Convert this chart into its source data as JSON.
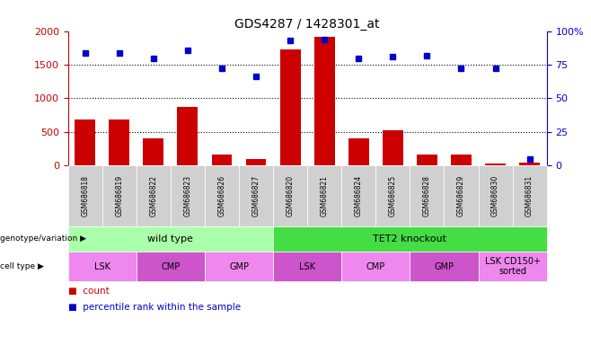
{
  "title": "GDS4287 / 1428301_at",
  "samples": [
    "GSM686818",
    "GSM686819",
    "GSM686822",
    "GSM686823",
    "GSM686826",
    "GSM686827",
    "GSM686820",
    "GSM686821",
    "GSM686824",
    "GSM686825",
    "GSM686828",
    "GSM686829",
    "GSM686830",
    "GSM686831"
  ],
  "counts": [
    680,
    690,
    400,
    870,
    165,
    100,
    1730,
    1920,
    400,
    520,
    170,
    160,
    30,
    50
  ],
  "percentile_ranks": [
    84,
    84,
    80,
    86,
    72,
    66,
    93,
    94,
    80,
    81,
    82,
    72,
    72,
    5
  ],
  "bar_color": "#cc0000",
  "dot_color": "#0000cc",
  "ylim_left": [
    0,
    2000
  ],
  "ylim_right": [
    0,
    100
  ],
  "yticks_left": [
    0,
    500,
    1000,
    1500,
    2000
  ],
  "ytick_labels_left": [
    "0",
    "500",
    "1000",
    "1500",
    "2000"
  ],
  "yticks_right": [
    0,
    25,
    50,
    75,
    100
  ],
  "ytick_labels_right": [
    "0",
    "25",
    "50",
    "75",
    "100%"
  ],
  "left_axis_color": "#cc0000",
  "right_axis_color": "#0000cc",
  "genotype_row": {
    "wild_type": {
      "label": "wild type",
      "span": [
        0,
        6
      ],
      "color": "#aaffaa"
    },
    "tet2_ko": {
      "label": "TET2 knockout",
      "span": [
        6,
        14
      ],
      "color": "#44dd44"
    }
  },
  "cell_type_row": {
    "cells": [
      {
        "label": "LSK",
        "span": [
          0,
          2
        ],
        "color": "#ee88ee"
      },
      {
        "label": "CMP",
        "span": [
          2,
          4
        ],
        "color": "#cc55cc"
      },
      {
        "label": "GMP",
        "span": [
          4,
          6
        ],
        "color": "#ee88ee"
      },
      {
        "label": "LSK",
        "span": [
          6,
          8
        ],
        "color": "#cc55cc"
      },
      {
        "label": "CMP",
        "span": [
          8,
          10
        ],
        "color": "#ee88ee"
      },
      {
        "label": "GMP",
        "span": [
          10,
          12
        ],
        "color": "#cc55cc"
      },
      {
        "label": "LSK CD150+\nsorted",
        "span": [
          12,
          14
        ],
        "color": "#ee88ee"
      }
    ]
  },
  "sample_cell_color": "#d0d0d0",
  "legend_count_color": "#cc0000",
  "legend_pct_color": "#0000cc",
  "grid_color": "#000000",
  "background_color": "#ffffff",
  "bar_width": 0.6
}
